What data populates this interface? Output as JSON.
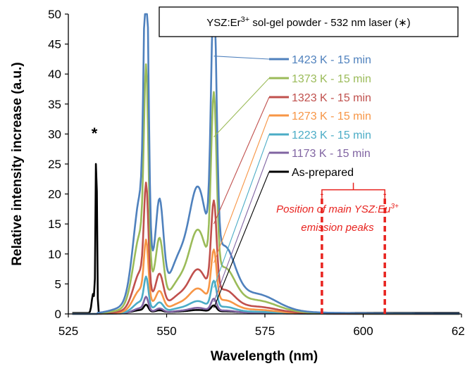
{
  "chart_data": {
    "type": "line",
    "title": "YSZ:Er³⁺ sol-gel powder - 532 nm laser (∗)",
    "title_parts": {
      "prefix": "YSZ:Er",
      "sup": "3+",
      "suffix": " sol-gel powder - 532 nm laser (∗)"
    },
    "xlabel": "Wavelength (nm)",
    "ylabel": "Relative intensity increase (a.u.)",
    "xlim": [
      525,
      625
    ],
    "ylim": [
      0,
      50
    ],
    "x_ticks": [
      "525",
      "550",
      "575",
      "600",
      "625"
    ],
    "y_ticks": [
      "0",
      "5",
      "10",
      "15",
      "20",
      "25",
      "30",
      "35",
      "40",
      "45",
      "50"
    ],
    "grid": false,
    "legend_position": "right, inline labels with leader lines",
    "laser_marker": {
      "label": "*",
      "x": 532,
      "peak": 28.5
    },
    "annotation": {
      "line1_prefix": "Position of main YSZ:Eu",
      "line1_sup": "3+",
      "line2": "emission peaks",
      "color": "#e8231f",
      "x_positions": [
        589.5,
        605.5
      ],
      "height": 20
    },
    "series": [
      {
        "name": "1423 K - 15 min",
        "color": "#4f81bd",
        "peak1": 48,
        "trough": 16.5,
        "peak2": 43,
        "shoulder": 30,
        "tail": 1.2
      },
      {
        "name": "1373 K - 15 min",
        "color": "#9bbb59",
        "peak1": 30.8,
        "trough": 9.5,
        "peak2": 29.5,
        "shoulder": 20,
        "tail": 0.8
      },
      {
        "name": "1323 K - 15 min",
        "color": "#c0504d",
        "peak1": 16.2,
        "trough": 5.3,
        "peak2": 15,
        "shoulder": 10.5,
        "tail": 0.5
      },
      {
        "name": "1273 K - 15 min",
        "color": "#f79646",
        "peak1": 9.1,
        "trough": 2.9,
        "peak2": 8.5,
        "shoulder": 6,
        "tail": 0.3
      },
      {
        "name": "1223 K - 15 min",
        "color": "#4bacc6",
        "peak1": 4.6,
        "trough": 1.6,
        "peak2": 4.4,
        "shoulder": 3,
        "tail": 0.15
      },
      {
        "name": "1173 K - 15 min",
        "color": "#8064a2",
        "peak1": 2.1,
        "trough": 0.8,
        "peak2": 2,
        "shoulder": 1.4,
        "tail": 0.1
      },
      {
        "name": "As-prepared",
        "color": "#000000",
        "peak1": 1.0,
        "trough": 0.4,
        "peak2": 1.0,
        "shoulder": 0.7,
        "tail": 0.05
      }
    ]
  }
}
